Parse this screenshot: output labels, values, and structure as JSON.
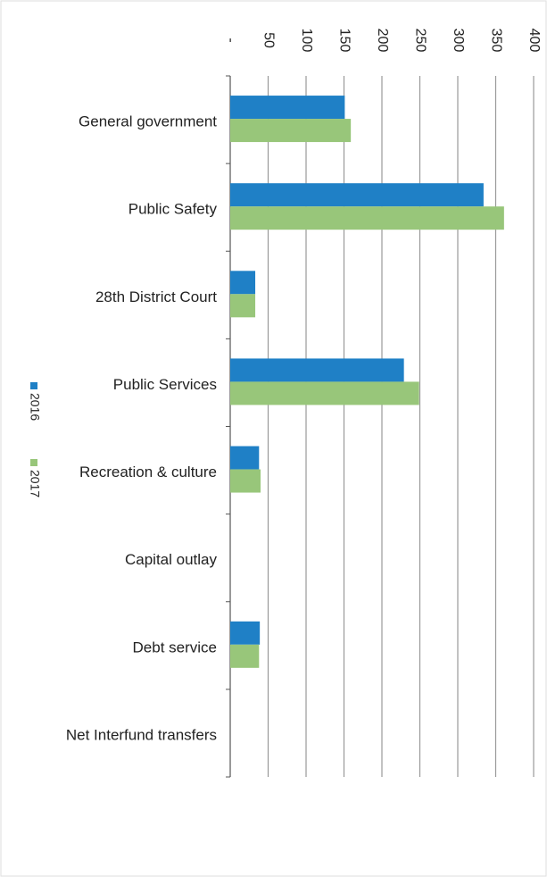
{
  "chart_data": {
    "type": "hbar",
    "categories": [
      "General government",
      "Public Safety",
      "28th District Court",
      "Public Services",
      "Recreation & culture",
      "Capital outlay",
      "Debt service",
      "Net Interfund transfers"
    ],
    "series": [
      {
        "name": "2016",
        "color": "#1f80c6",
        "values": [
          151,
          334,
          33,
          229,
          38,
          0,
          39,
          0
        ]
      },
      {
        "name": "2017",
        "color": "#98c67a",
        "values": [
          159,
          361,
          33,
          249,
          40,
          0,
          38,
          0
        ]
      }
    ],
    "xlim": [
      0,
      400
    ],
    "xticks": [
      {
        "value": 0,
        "label": "-"
      },
      50,
      100,
      150,
      200,
      250,
      300,
      350,
      400
    ],
    "grid": true,
    "legend": "left"
  }
}
